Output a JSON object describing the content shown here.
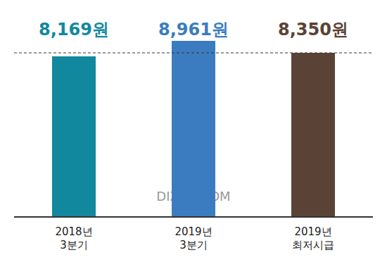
{
  "chart_data": {
    "type": "bar",
    "categories": [
      "2018년 3분기",
      "2019년 3분기",
      "2019년 최저시급"
    ],
    "values": [
      8169,
      8961,
      8350
    ],
    "value_labels": [
      "8,169원",
      "8,961원",
      "8,350원"
    ],
    "colors": [
      "#12889e",
      "#3b7cc0",
      "#5a4336"
    ],
    "ylim": [
      0,
      10000
    ],
    "reference_line": 8350,
    "data_labels": true,
    "tick_labels": "x",
    "grid": false,
    "annotation": "DIZZO.COM"
  }
}
